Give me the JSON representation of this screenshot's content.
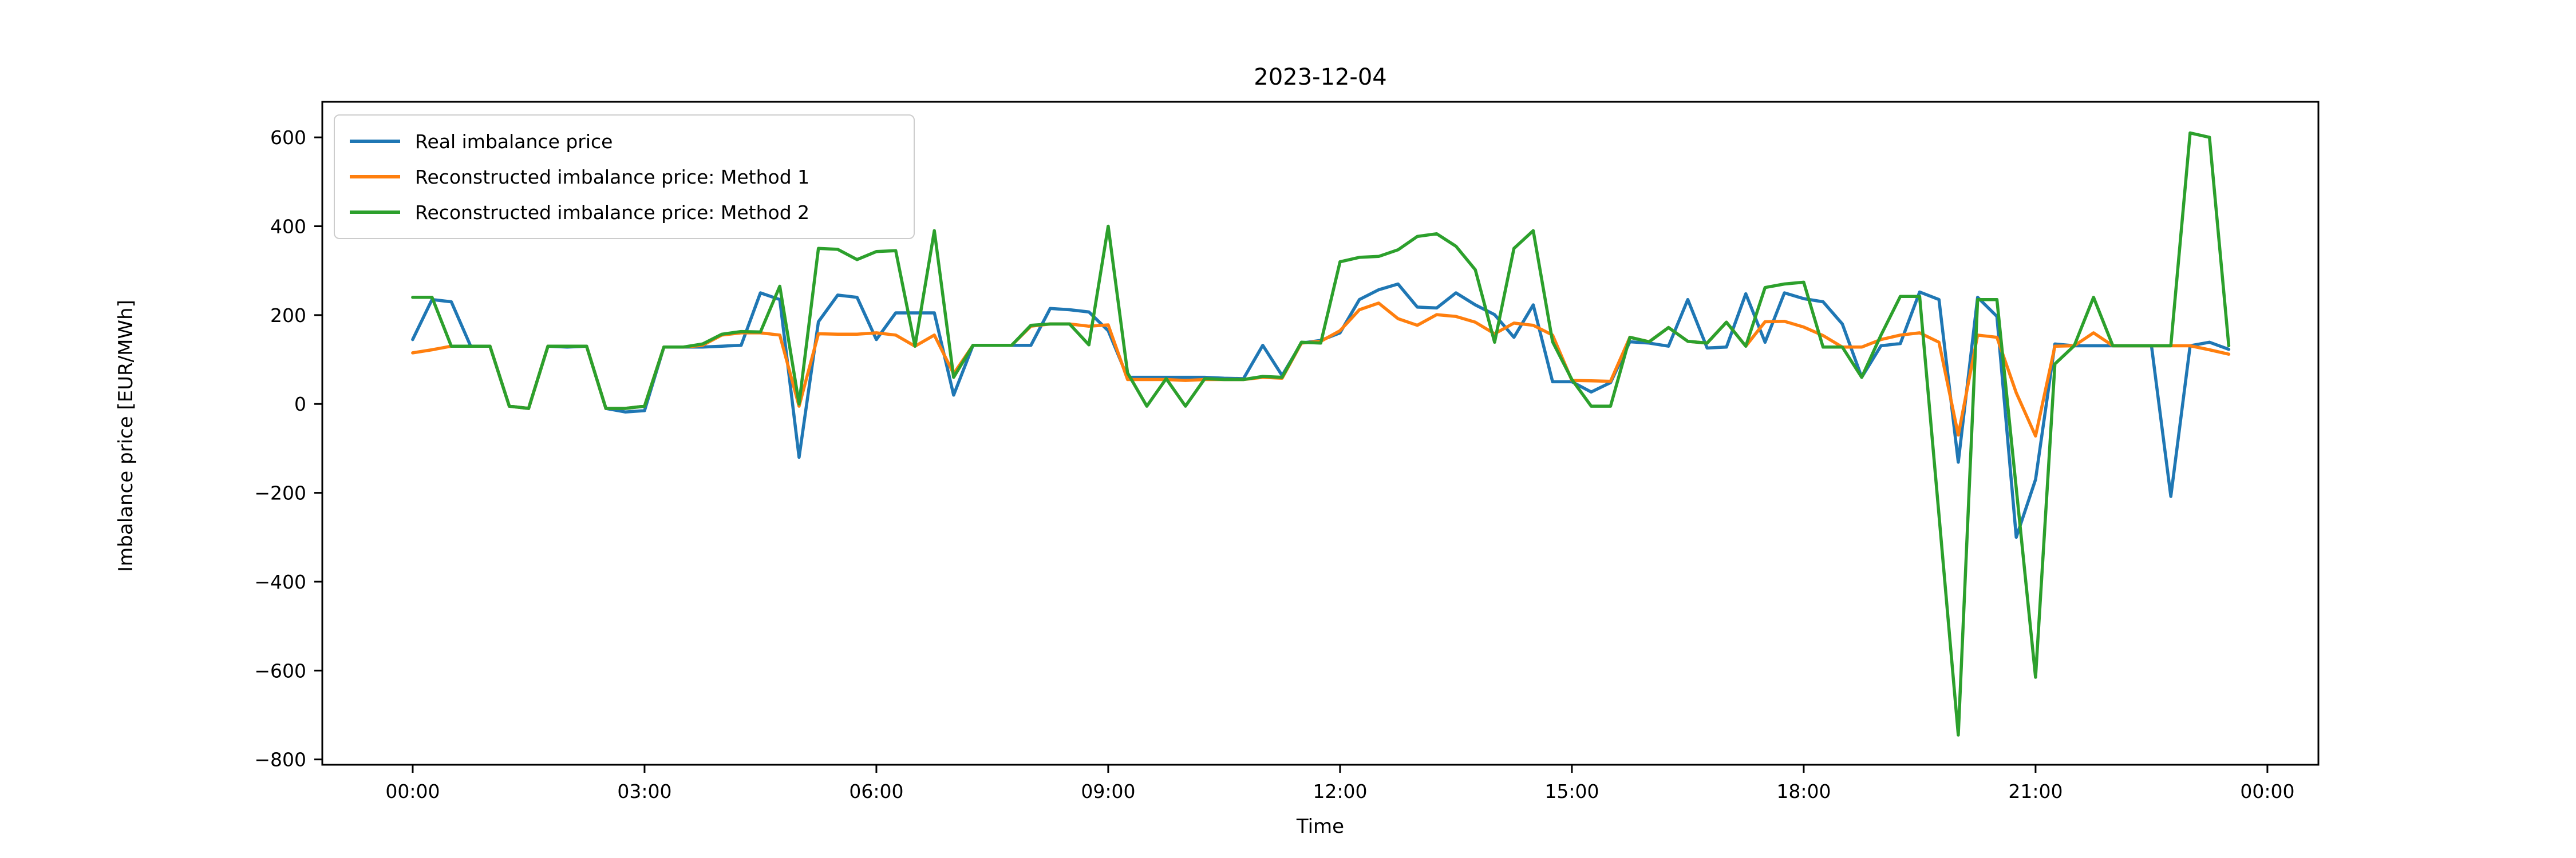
{
  "chart_data": {
    "type": "line",
    "title": "2023-12-04",
    "xlabel": "Time",
    "ylabel": "Imbalance price [EUR/MWh]",
    "grid": false,
    "legend_position": "upper-left",
    "x_start_hour": 0,
    "x_step_hours": 0.25,
    "n_points": 95,
    "xlim_hours": [
      -1.17,
      24.66
    ],
    "ylim": [
      -812,
      680
    ],
    "x_ticks": [
      {
        "hour": 0,
        "label": "00:00"
      },
      {
        "hour": 3,
        "label": "03:00"
      },
      {
        "hour": 6,
        "label": "06:00"
      },
      {
        "hour": 9,
        "label": "09:00"
      },
      {
        "hour": 12,
        "label": "12:00"
      },
      {
        "hour": 15,
        "label": "15:00"
      },
      {
        "hour": 18,
        "label": "18:00"
      },
      {
        "hour": 21,
        "label": "21:00"
      },
      {
        "hour": 24,
        "label": "00:00"
      }
    ],
    "y_ticks": [
      {
        "value": 600,
        "label": "600"
      },
      {
        "value": 400,
        "label": "400"
      },
      {
        "value": 200,
        "label": "200"
      },
      {
        "value": 0,
        "label": "0"
      },
      {
        "value": -200,
        "label": "−200"
      },
      {
        "value": -400,
        "label": "−400"
      },
      {
        "value": -600,
        "label": "−600"
      },
      {
        "value": -800,
        "label": "−800"
      }
    ],
    "series": [
      {
        "name": "Real imbalance price",
        "color": "#1f77b4",
        "values": [
          145,
          235,
          230,
          130,
          130,
          -5,
          -10,
          130,
          128,
          130,
          -10,
          -18,
          -15,
          128,
          128,
          128,
          130,
          132,
          250,
          235,
          -120,
          185,
          245,
          240,
          145,
          205,
          205,
          205,
          20,
          132,
          132,
          132,
          132,
          215,
          212,
          207,
          165,
          60,
          60,
          60,
          60,
          60,
          58,
          57,
          132,
          64,
          137,
          143,
          160,
          235,
          257,
          270,
          218,
          216,
          250,
          223,
          201,
          150,
          223,
          50,
          50,
          27,
          48,
          140,
          137,
          130,
          235,
          126,
          128,
          248,
          139,
          250,
          237,
          230,
          180,
          60,
          131,
          136,
          252,
          235,
          -131,
          240,
          197,
          -300,
          -170,
          135,
          131,
          131,
          131,
          131,
          131,
          -208,
          131,
          139,
          123
        ]
      },
      {
        "name": "Reconstructed imbalance price: Method 1",
        "color": "#ff7f0e",
        "values": [
          115,
          122,
          130,
          130,
          130,
          -5,
          -10,
          130,
          130,
          130,
          -10,
          -10,
          -5,
          128,
          128,
          132,
          155,
          160,
          160,
          155,
          -5,
          158,
          157,
          157,
          160,
          155,
          130,
          155,
          68,
          132,
          132,
          132,
          175,
          180,
          180,
          175,
          178,
          55,
          55,
          55,
          53,
          55,
          55,
          55,
          60,
          58,
          137,
          141,
          165,
          212,
          227,
          192,
          177,
          201,
          197,
          184,
          158,
          182,
          177,
          155,
          53,
          52,
          51,
          150,
          140,
          172,
          141,
          137,
          184,
          130,
          185,
          186,
          173,
          154,
          128,
          128,
          145,
          155,
          160,
          139,
          -70,
          155,
          150,
          25,
          -72,
          130,
          131,
          160,
          131,
          131,
          131,
          131,
          131,
          122,
          112
        ]
      },
      {
        "name": "Reconstructed imbalance price: Method 2",
        "color": "#2ca02c",
        "values": [
          240,
          240,
          130,
          130,
          130,
          -5,
          -10,
          130,
          130,
          130,
          -10,
          -10,
          -5,
          128,
          128,
          135,
          157,
          163,
          162,
          265,
          0,
          350,
          348,
          325,
          343,
          345,
          130,
          390,
          60,
          132,
          132,
          132,
          177,
          180,
          180,
          133,
          400,
          70,
          -5,
          57,
          -5,
          57,
          55,
          55,
          62,
          60,
          139,
          137,
          320,
          330,
          332,
          347,
          377,
          383,
          355,
          302,
          139,
          350,
          390,
          140,
          55,
          -5,
          -5,
          150,
          140,
          172,
          141,
          137,
          184,
          130,
          262,
          270,
          274,
          128,
          128,
          60,
          155,
          242,
          242,
          -250,
          -745,
          235,
          235,
          -190,
          -615,
          90,
          131,
          240,
          131,
          131,
          131,
          131,
          610,
          600,
          131
        ]
      }
    ]
  },
  "layout_text": {
    "title": "2023-12-04",
    "xlabel": "Time",
    "ylabel": "Imbalance price [EUR/MWh]",
    "legend": {
      "item1": "Real imbalance price",
      "item2": "Reconstructed imbalance price: Method 1",
      "item3": "Reconstructed imbalance price: Method 2"
    }
  },
  "colors": {
    "series1": "#1f77b4",
    "series2": "#ff7f0e",
    "series3": "#2ca02c",
    "axis": "#000000",
    "legend_border": "#cccccc"
  }
}
